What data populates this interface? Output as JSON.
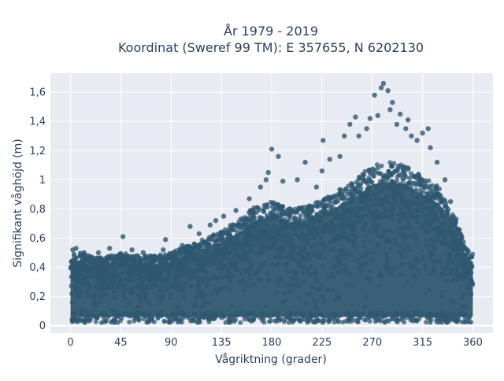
{
  "chart_data": {
    "type": "scatter",
    "title": [
      "År 1979 - 2019",
      "Koordinat (Sweref 99 TM): E 357655, N 6202130"
    ],
    "xlabel": "Vågriktning (grader)",
    "ylabel": "Signifikant våghöjd (m)",
    "xlim": [
      -18,
      378
    ],
    "ylim": [
      -0.05,
      1.73
    ],
    "xticks": [
      0,
      45,
      90,
      135,
      180,
      225,
      270,
      315,
      360
    ],
    "xtick_labels": [
      "0",
      "45",
      "90",
      "135",
      "180",
      "225",
      "270",
      "315",
      "360"
    ],
    "yticks": [
      0,
      0.2,
      0.4,
      0.6,
      0.8,
      1,
      1.2,
      1.4,
      1.6
    ],
    "ytick_labels": [
      "0",
      "0,2",
      "0,4",
      "0,6",
      "0,8",
      "1",
      "1,2",
      "1,4",
      "1,6"
    ],
    "grid": true,
    "marker_color": "#2f5870",
    "plot_bg": "#e9ebf3",
    "upper_envelope": [
      [
        0,
        0.5
      ],
      [
        10,
        0.5
      ],
      [
        20,
        0.47
      ],
      [
        30,
        0.47
      ],
      [
        45,
        0.5
      ],
      [
        60,
        0.48
      ],
      [
        75,
        0.48
      ],
      [
        90,
        0.5
      ],
      [
        105,
        0.55
      ],
      [
        120,
        0.6
      ],
      [
        135,
        0.65
      ],
      [
        150,
        0.72
      ],
      [
        165,
        0.82
      ],
      [
        180,
        0.85
      ],
      [
        195,
        0.8
      ],
      [
        210,
        0.82
      ],
      [
        225,
        0.86
      ],
      [
        240,
        0.93
      ],
      [
        255,
        1.0
      ],
      [
        270,
        1.1
      ],
      [
        285,
        1.12
      ],
      [
        300,
        1.1
      ],
      [
        315,
        1.02
      ],
      [
        330,
        0.95
      ],
      [
        345,
        0.72
      ],
      [
        355,
        0.52
      ],
      [
        360,
        0.5
      ]
    ],
    "outliers": [
      [
        2,
        0.52
      ],
      [
        5,
        0.53
      ],
      [
        12,
        0.5
      ],
      [
        25,
        0.5
      ],
      [
        35,
        0.53
      ],
      [
        47,
        0.61
      ],
      [
        55,
        0.52
      ],
      [
        65,
        0.5
      ],
      [
        83,
        0.52
      ],
      [
        85,
        0.59
      ],
      [
        100,
        0.55
      ],
      [
        107,
        0.68
      ],
      [
        115,
        0.63
      ],
      [
        125,
        0.69
      ],
      [
        130,
        0.72
      ],
      [
        137,
        0.75
      ],
      [
        148,
        0.79
      ],
      [
        160,
        0.87
      ],
      [
        170,
        0.95
      ],
      [
        175,
        1.0
      ],
      [
        177,
        1.05
      ],
      [
        180,
        1.21
      ],
      [
        186,
        1.16
      ],
      [
        190,
        0.99
      ],
      [
        203,
        1.0
      ],
      [
        210,
        1.12
      ],
      [
        220,
        0.95
      ],
      [
        225,
        1.06
      ],
      [
        226,
        1.27
      ],
      [
        232,
        1.14
      ],
      [
        241,
        1.16
      ],
      [
        245,
        1.3
      ],
      [
        250,
        1.38
      ],
      [
        255,
        1.43
      ],
      [
        258,
        1.3
      ],
      [
        265,
        1.35
      ],
      [
        268,
        1.42
      ],
      [
        272,
        1.58
      ],
      [
        275,
        1.44
      ],
      [
        278,
        1.63
      ],
      [
        280,
        1.66
      ],
      [
        284,
        1.61
      ],
      [
        286,
        1.48
      ],
      [
        288,
        1.53
      ],
      [
        292,
        1.38
      ],
      [
        295,
        1.45
      ],
      [
        300,
        1.35
      ],
      [
        302,
        1.41
      ],
      [
        305,
        1.3
      ],
      [
        310,
        1.27
      ],
      [
        315,
        1.32
      ],
      [
        320,
        1.35
      ],
      [
        322,
        1.22
      ],
      [
        328,
        1.12
      ],
      [
        335,
        1.0
      ],
      [
        340,
        0.85
      ],
      [
        345,
        0.73
      ],
      [
        350,
        0.6
      ],
      [
        355,
        0.52
      ]
    ]
  }
}
